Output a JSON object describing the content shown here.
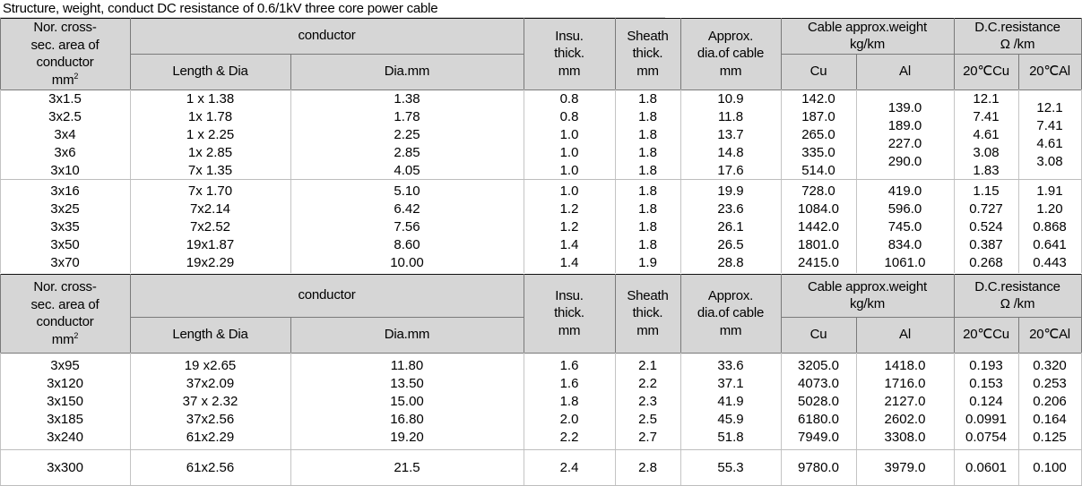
{
  "title": "Structure, weight, conduct DC resistance of 0.6/1kV three core power cable",
  "header": {
    "nor_area": [
      "Nor. cross-",
      "sec. area of",
      "conductor",
      "mm"
    ],
    "nor_area_sup": "2",
    "conductor": "conductor",
    "length_dia": "Length & Dia",
    "dia_mm": "Dia.mm",
    "insu": [
      "Insu.",
      "thick.",
      "mm"
    ],
    "sheath": [
      "Sheath",
      "thick.",
      "mm"
    ],
    "approx_dia": [
      "Approx.",
      "dia.of cable",
      "mm"
    ],
    "weight": [
      "Cable approx.weight",
      "kg/km"
    ],
    "cu": "Cu",
    "al": "Al",
    "resistance": [
      "D.C.resistance",
      "Ω /km"
    ],
    "res_cu": "20℃Cu",
    "res_al": "20℃Al"
  },
  "group1": {
    "area": [
      "3x1.5",
      "3x2.5",
      "3x4",
      "3x6",
      "3x10"
    ],
    "length_dia": [
      "1 x 1.38",
      "1x 1.78",
      "1 x 2.25",
      "1x 2.85",
      "7x 1.35"
    ],
    "dia": [
      "1.38",
      "1.78",
      "2.25",
      "2.85",
      "4.05"
    ],
    "insu": [
      "0.8",
      "0.8",
      "1.0",
      "1.0",
      "1.0"
    ],
    "sheath": [
      "1.8",
      "1.8",
      "1.8",
      "1.8",
      "1.8"
    ],
    "approx": [
      "10.9",
      "11.8",
      "13.7",
      "14.8",
      "17.6"
    ],
    "cu": [
      "142.0",
      "187.0",
      "265.0",
      "335.0",
      "514.0"
    ],
    "al": [
      "139.0",
      "189.0",
      "227.0",
      "290.0"
    ],
    "res_cu": [
      "12.1",
      "7.41",
      "4.61",
      "3.08",
      "1.83"
    ],
    "res_al": [
      "12.1",
      "7.41",
      "4.61",
      "3.08"
    ]
  },
  "group2": {
    "area": [
      "3x16",
      "3x25",
      "3x35",
      "3x50",
      "3x70"
    ],
    "length_dia": [
      "7x 1.70",
      "7x2.14",
      "7x2.52",
      "19x1.87",
      "19x2.29"
    ],
    "dia": [
      "5.10",
      "6.42",
      "7.56",
      "8.60",
      "10.00"
    ],
    "insu": [
      "1.0",
      "1.2",
      "1.2",
      "1.4",
      "1.4"
    ],
    "sheath": [
      "1.8",
      "1.8",
      "1.8",
      "1.8",
      "1.9"
    ],
    "approx": [
      "19.9",
      "23.6",
      "26.1",
      "26.5",
      "28.8"
    ],
    "cu": [
      "728.0",
      "1084.0",
      "1442.0",
      "1801.0",
      "2415.0"
    ],
    "al": [
      "419.0",
      "596.0",
      "745.0",
      "834.0",
      "1061.0"
    ],
    "res_cu": [
      "1.15",
      "0.727",
      "0.524",
      "0.387",
      "0.268"
    ],
    "res_al": [
      "1.91",
      "1.20",
      "0.868",
      "0.641",
      "0.443"
    ]
  },
  "group3": {
    "area": [
      "3x95",
      "3x120",
      "3x150",
      "3x185",
      "3x240"
    ],
    "length_dia": [
      "19 x2.65",
      "37x2.09",
      "37 x 2.32",
      "37x2.56",
      "61x2.29"
    ],
    "dia": [
      "11.80",
      "13.50",
      "15.00",
      "16.80",
      "19.20"
    ],
    "insu": [
      "1.6",
      "1.6",
      "1.8",
      "2.0",
      "2.2"
    ],
    "sheath": [
      "2.1",
      "2.2",
      "2.3",
      "2.5",
      "2.7"
    ],
    "approx": [
      "33.6",
      "37.1",
      "41.9",
      "45.9",
      "51.8"
    ],
    "cu": [
      "3205.0",
      "4073.0",
      "5028.0",
      "6180.0",
      "7949.0"
    ],
    "al": [
      "1418.0",
      "1716.0",
      "2127.0",
      "2602.0",
      "3308.0"
    ],
    "res_cu": [
      "0.193",
      "0.153",
      "0.124",
      "0.0991",
      "0.0754"
    ],
    "res_al": [
      "0.320",
      "0.253",
      "0.206",
      "0.164",
      "0.125"
    ]
  },
  "group4": {
    "area": [
      "3x300"
    ],
    "length_dia": [
      "61x2.56"
    ],
    "dia": [
      "21.5"
    ],
    "insu": [
      "2.4"
    ],
    "sheath": [
      "2.8"
    ],
    "approx": [
      "55.3"
    ],
    "cu": [
      "9780.0"
    ],
    "al": [
      "3979.0"
    ],
    "res_cu": [
      "0.0601"
    ],
    "res_al": [
      "0.100"
    ]
  }
}
